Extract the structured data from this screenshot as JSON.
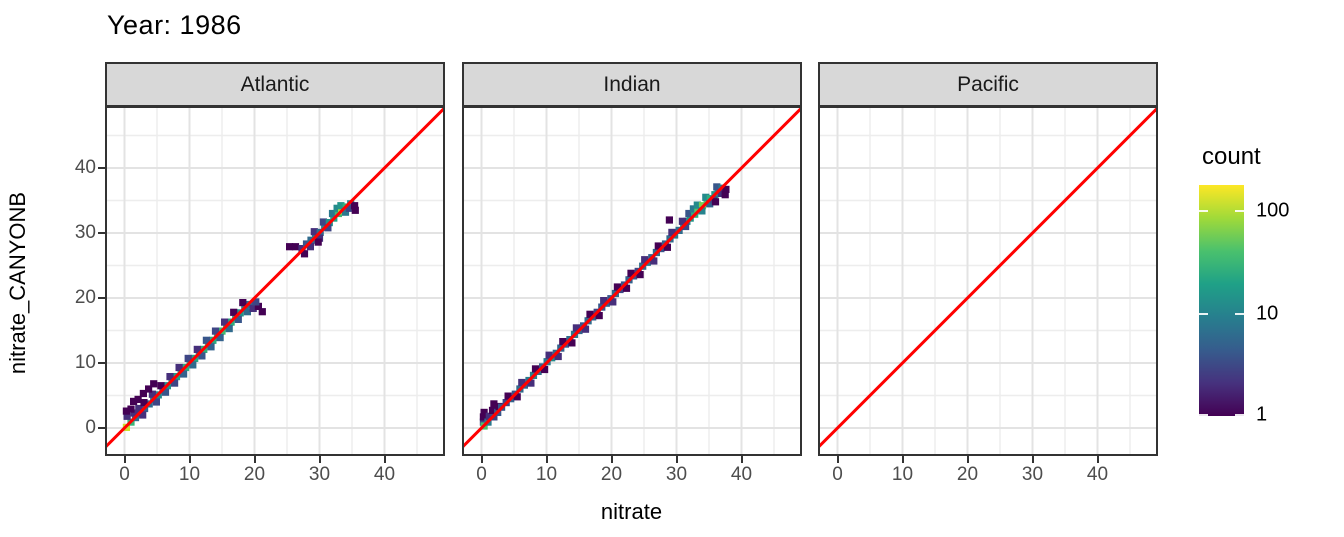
{
  "title": "Year: 1986",
  "colors": {
    "background": "#ffffff",
    "strip_fill": "#d8d8d8",
    "strip_border": "#333333",
    "panel_border": "#333333",
    "grid_major": "#e3e3e3",
    "grid_minor": "#ededed",
    "axis_text": "#4d4d4d",
    "text": "#000000",
    "reference_line": "#ff0000",
    "viridis_stops": [
      "#440154",
      "#46327e",
      "#365c8d",
      "#277f8e",
      "#1fa187",
      "#4ac16d",
      "#a0da39",
      "#fde725"
    ]
  },
  "chart_data": {
    "type": "heatmap",
    "geom": "bin2d",
    "title": "Year: 1986",
    "xlabel": "nitrate",
    "ylabel": "nitrate_CANYONB",
    "x_ticks": [
      0,
      10,
      20,
      30,
      40
    ],
    "x_minor_ticks": [
      5,
      15,
      25,
      35,
      45
    ],
    "y_ticks": [
      0,
      10,
      20,
      30,
      40
    ],
    "y_minor_ticks": [
      5,
      15,
      25,
      35,
      45
    ],
    "xlim": [
      -3,
      49.3
    ],
    "ylim": [
      -4.3,
      49.5
    ],
    "grid": true,
    "legend_position": "right",
    "reference_line": {
      "equation": "y = x",
      "color": "#ff0000"
    },
    "legend": {
      "title": "count",
      "ticks": [
        100,
        10,
        1
      ],
      "max": 180,
      "scale": "log10"
    },
    "binwidth": 1.1,
    "panels": [
      {
        "label": "Atlantic",
        "bins": [
          [
            0.3,
            0.1,
            120
          ],
          [
            1.0,
            0.9,
            30
          ],
          [
            1.7,
            1.6,
            6
          ],
          [
            2.4,
            2.3,
            4
          ],
          [
            3.1,
            3.0,
            5
          ],
          [
            3.8,
            3.7,
            6
          ],
          [
            4.5,
            4.4,
            8
          ],
          [
            5.2,
            5.1,
            12
          ],
          [
            5.9,
            5.8,
            10
          ],
          [
            6.6,
            6.5,
            15
          ],
          [
            7.3,
            7.2,
            18
          ],
          [
            8.0,
            7.9,
            20
          ],
          [
            8.7,
            8.6,
            22
          ],
          [
            9.4,
            9.3,
            25
          ],
          [
            10.1,
            10.0,
            28
          ],
          [
            10.8,
            10.7,
            22
          ],
          [
            11.5,
            11.4,
            18
          ],
          [
            12.2,
            12.1,
            26
          ],
          [
            12.9,
            12.8,
            30
          ],
          [
            13.6,
            13.5,
            24
          ],
          [
            14.3,
            14.2,
            28
          ],
          [
            15.0,
            14.9,
            35
          ],
          [
            15.7,
            15.6,
            30
          ],
          [
            16.4,
            16.3,
            25
          ],
          [
            17.1,
            17.0,
            20
          ],
          [
            17.8,
            17.7,
            15
          ],
          [
            18.5,
            18.4,
            10
          ],
          [
            19.2,
            19.0,
            6
          ],
          [
            1.5,
            2.3,
            2
          ],
          [
            2.2,
            3.0,
            2
          ],
          [
            3.0,
            3.9,
            1
          ],
          [
            4.3,
            5.2,
            2
          ],
          [
            5.6,
            6.5,
            1
          ],
          [
            7.0,
            7.9,
            2
          ],
          [
            8.4,
            9.3,
            2
          ],
          [
            9.8,
            10.7,
            3
          ],
          [
            11.2,
            12.1,
            2
          ],
          [
            12.6,
            13.5,
            4
          ],
          [
            14.0,
            14.9,
            3
          ],
          [
            15.4,
            16.3,
            2
          ],
          [
            16.8,
            17.8,
            1
          ],
          [
            18.2,
            19.3,
            1
          ],
          [
            2.8,
            2.0,
            2
          ],
          [
            4.9,
            4.0,
            3
          ],
          [
            6.3,
            5.5,
            4
          ],
          [
            7.7,
            6.9,
            3
          ],
          [
            9.1,
            8.3,
            5
          ],
          [
            10.5,
            9.7,
            6
          ],
          [
            11.9,
            11.1,
            4
          ],
          [
            13.3,
            12.5,
            5
          ],
          [
            14.7,
            13.9,
            5
          ],
          [
            16.1,
            15.3,
            6
          ],
          [
            17.5,
            16.7,
            4
          ],
          [
            18.9,
            17.9,
            6
          ],
          [
            1.0,
            2.9,
            1
          ],
          [
            1.4,
            4.1,
            1
          ],
          [
            2.1,
            4.4,
            1
          ],
          [
            2.9,
            5.3,
            1
          ],
          [
            3.7,
            6.0,
            1
          ],
          [
            4.5,
            6.8,
            1
          ],
          [
            0.4,
            1.8,
            2
          ],
          [
            0.3,
            2.6,
            1
          ],
          [
            19.8,
            18.4,
            2
          ],
          [
            20.6,
            18.7,
            1
          ],
          [
            21.2,
            17.9,
            1
          ],
          [
            20.2,
            19.4,
            3
          ],
          [
            25.4,
            27.9,
            1
          ],
          [
            26.3,
            27.9,
            1
          ],
          [
            27.3,
            27.6,
            2
          ],
          [
            27.7,
            26.8,
            1
          ],
          [
            28.0,
            28.3,
            4
          ],
          [
            28.7,
            28.9,
            6
          ],
          [
            28.6,
            27.9,
            2
          ],
          [
            29.4,
            29.5,
            8
          ],
          [
            29.2,
            30.2,
            2
          ],
          [
            30.1,
            30.1,
            6
          ],
          [
            30.0,
            29.2,
            2
          ],
          [
            30.8,
            30.9,
            10
          ],
          [
            30.6,
            31.7,
            3
          ],
          [
            31.5,
            31.6,
            14
          ],
          [
            31.3,
            30.8,
            3
          ],
          [
            32.2,
            32.3,
            20
          ],
          [
            32.0,
            33.0,
            8
          ],
          [
            32.9,
            33.0,
            35
          ],
          [
            32.7,
            33.8,
            12
          ],
          [
            33.4,
            33.4,
            90
          ],
          [
            33.3,
            34.2,
            15
          ],
          [
            34.1,
            34.0,
            28
          ],
          [
            34.0,
            33.2,
            8
          ],
          [
            34.8,
            34.5,
            10
          ],
          [
            34.6,
            33.8,
            3
          ],
          [
            35.4,
            34.2,
            1
          ],
          [
            35.5,
            33.5,
            1
          ],
          [
            29.8,
            28.6,
            1
          ]
        ]
      },
      {
        "label": "Indian",
        "bins": [
          [
            0.3,
            0.9,
            3
          ],
          [
            0.3,
            1.7,
            1
          ],
          [
            0.4,
            2.4,
            1
          ],
          [
            0.4,
            0.3,
            40
          ],
          [
            1.0,
            0.9,
            8
          ],
          [
            1.2,
            1.8,
            2
          ],
          [
            1.9,
            1.7,
            3
          ],
          [
            1.7,
            2.7,
            1
          ],
          [
            1.9,
            3.7,
            1
          ],
          [
            2.5,
            2.4,
            4
          ],
          [
            2.7,
            3.3,
            1
          ],
          [
            3.1,
            3.2,
            4
          ],
          [
            3.8,
            3.9,
            3
          ],
          [
            4.5,
            4.5,
            5
          ],
          [
            5.2,
            5.2,
            4
          ],
          [
            5.9,
            6.0,
            6
          ],
          [
            6.6,
            6.6,
            5
          ],
          [
            7.3,
            7.3,
            8
          ],
          [
            8.0,
            8.1,
            10
          ],
          [
            8.7,
            8.7,
            6
          ],
          [
            9.4,
            9.4,
            5
          ],
          [
            10.1,
            10.2,
            8
          ],
          [
            10.8,
            10.8,
            12
          ],
          [
            11.5,
            11.5,
            6
          ],
          [
            12.2,
            12.3,
            5
          ],
          [
            12.9,
            12.9,
            4
          ],
          [
            13.6,
            13.6,
            6
          ],
          [
            14.3,
            14.4,
            8
          ],
          [
            15.0,
            15.0,
            5
          ],
          [
            15.7,
            15.7,
            4
          ],
          [
            16.4,
            16.5,
            6
          ],
          [
            17.1,
            17.1,
            5
          ],
          [
            17.8,
            17.8,
            3
          ],
          [
            18.5,
            18.6,
            4
          ],
          [
            19.2,
            19.2,
            5
          ],
          [
            19.9,
            19.9,
            4
          ],
          [
            20.6,
            20.7,
            6
          ],
          [
            21.3,
            21.3,
            3
          ],
          [
            22.0,
            22.0,
            4
          ],
          [
            22.7,
            22.8,
            5
          ],
          [
            23.4,
            23.4,
            4
          ],
          [
            24.1,
            24.1,
            3
          ],
          [
            24.8,
            24.9,
            6
          ],
          [
            25.5,
            25.5,
            8
          ],
          [
            26.2,
            26.2,
            5
          ],
          [
            26.9,
            27.0,
            6
          ],
          [
            27.6,
            27.6,
            4
          ],
          [
            28.3,
            28.3,
            5
          ],
          [
            29.0,
            29.1,
            6
          ],
          [
            29.7,
            29.7,
            8
          ],
          [
            30.4,
            30.4,
            6
          ],
          [
            31.1,
            31.2,
            8
          ],
          [
            4.1,
            4.9,
            1
          ],
          [
            6.2,
            7.0,
            2
          ],
          [
            8.3,
            9.1,
            1
          ],
          [
            10.4,
            11.2,
            2
          ],
          [
            12.5,
            13.3,
            1
          ],
          [
            14.6,
            15.4,
            2
          ],
          [
            16.7,
            17.5,
            1
          ],
          [
            18.8,
            19.6,
            2
          ],
          [
            20.9,
            21.7,
            1
          ],
          [
            23.0,
            23.8,
            1
          ],
          [
            25.1,
            25.9,
            2
          ],
          [
            27.2,
            28.0,
            1
          ],
          [
            29.3,
            30.1,
            2
          ],
          [
            5.5,
            4.8,
            1
          ],
          [
            7.6,
            6.9,
            2
          ],
          [
            9.7,
            9.0,
            1
          ],
          [
            11.8,
            11.0,
            2
          ],
          [
            13.9,
            13.1,
            1
          ],
          [
            16.0,
            15.2,
            2
          ],
          [
            18.1,
            17.3,
            1
          ],
          [
            20.2,
            19.4,
            2
          ],
          [
            22.3,
            21.5,
            1
          ],
          [
            24.4,
            23.6,
            1
          ],
          [
            26.5,
            25.7,
            2
          ],
          [
            28.6,
            27.8,
            1
          ],
          [
            28.9,
            32.0,
            1
          ],
          [
            31.6,
            31.8,
            10
          ],
          [
            31.4,
            31.0,
            3
          ],
          [
            32.1,
            32.3,
            15
          ],
          [
            31.9,
            33.0,
            4
          ],
          [
            32.8,
            32.9,
            25
          ],
          [
            32.6,
            33.7,
            8
          ],
          [
            33.3,
            33.6,
            45
          ],
          [
            33.2,
            34.3,
            12
          ],
          [
            34.0,
            34.2,
            60
          ],
          [
            33.9,
            33.4,
            10
          ],
          [
            34.7,
            34.8,
            40
          ],
          [
            34.5,
            35.5,
            12
          ],
          [
            35.2,
            35.3,
            25
          ],
          [
            35.1,
            34.5,
            5
          ],
          [
            35.9,
            35.9,
            15
          ],
          [
            35.7,
            35.1,
            3
          ],
          [
            36.4,
            36.5,
            12
          ],
          [
            36.2,
            37.1,
            4
          ],
          [
            37.0,
            36.9,
            8
          ],
          [
            36.9,
            36.1,
            2
          ],
          [
            37.6,
            36.7,
            1
          ],
          [
            37.5,
            35.9,
            1
          ],
          [
            36.0,
            34.8,
            1
          ],
          [
            30.9,
            31.8,
            2
          ]
        ]
      },
      {
        "label": "Pacific",
        "bins": []
      }
    ]
  }
}
